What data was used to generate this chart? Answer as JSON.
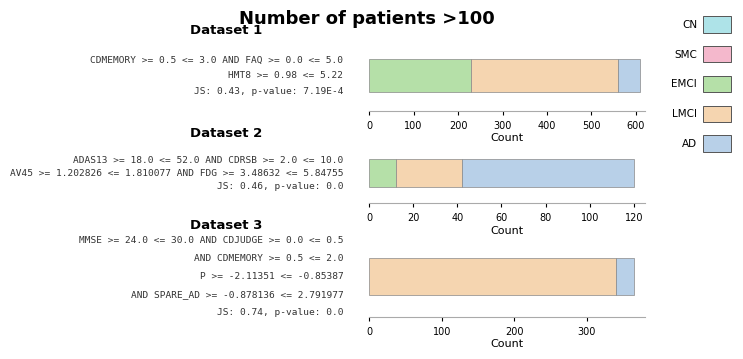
{
  "title": "Number of patients >100",
  "title_fontsize": 13,
  "legend_labels": [
    "CN",
    "SMC",
    "EMCI",
    "LMCI",
    "AD"
  ],
  "legend_colors": [
    "#aee3e8",
    "#f4b8cc",
    "#b5e0a8",
    "#f5d5b0",
    "#b8d0e8"
  ],
  "datasets": [
    {
      "label": "Dataset 1",
      "annotation_lines": [
        "CDMEMORY >= 0.5 <= 3.0 AND FAQ >= 0.0 <= 5.0",
        "HMT8 >= 0.98 <= 5.22",
        "JS: 0.43, p-value: 7.19E-4"
      ],
      "bars": {
        "CN": 0,
        "SMC": 0,
        "EMCI": 230,
        "LMCI": 330,
        "AD": 50
      },
      "xlim": [
        0,
        620
      ],
      "xticks": [
        0,
        100,
        200,
        300,
        400,
        500,
        600
      ]
    },
    {
      "label": "Dataset 2",
      "annotation_lines": [
        "ADAS13 >= 18.0 <= 52.0 AND CDRSB >= 2.0 <= 10.0",
        "AV45 >= 1.202826 <= 1.810077 AND FDG >= 3.48632 <= 5.84755",
        "JS: 0.46, p-value: 0.0"
      ],
      "bars": {
        "CN": 0,
        "SMC": 0,
        "EMCI": 12,
        "LMCI": 30,
        "AD": 78
      },
      "xlim": [
        0,
        125
      ],
      "xticks": [
        0,
        20,
        40,
        60,
        80,
        100,
        120
      ]
    },
    {
      "label": "Dataset 3",
      "annotation_lines": [
        "MMSE >= 24.0 <= 30.0 AND CDJUDGE >= 0.0 <= 0.5",
        "AND CDMEMORY >= 0.5 <= 2.0",
        "P >= -2.11351 <= -0.85387",
        "AND SPARE_AD >= -0.878136 <= 2.791977",
        "JS: 0.74, p-value: 0.0"
      ],
      "bars": {
        "CN": 0,
        "SMC": 0,
        "EMCI": 0,
        "LMCI": 340,
        "AD": 25
      },
      "xlim": [
        0,
        380
      ],
      "xticks": [
        0,
        100,
        200,
        300
      ]
    }
  ],
  "bar_colors": {
    "CN": "#aee3e8",
    "SMC": "#f4b8cc",
    "EMCI": "#b5e0a8",
    "LMCI": "#f5d5b0",
    "AD": "#b8d0e8"
  },
  "bar_edge_color": "#888888",
  "annotation_fontsize": 6.8,
  "dataset_label_fontsize": 9.5,
  "axis_label_fontsize": 8,
  "tick_fontsize": 7,
  "background_color": "#ffffff"
}
